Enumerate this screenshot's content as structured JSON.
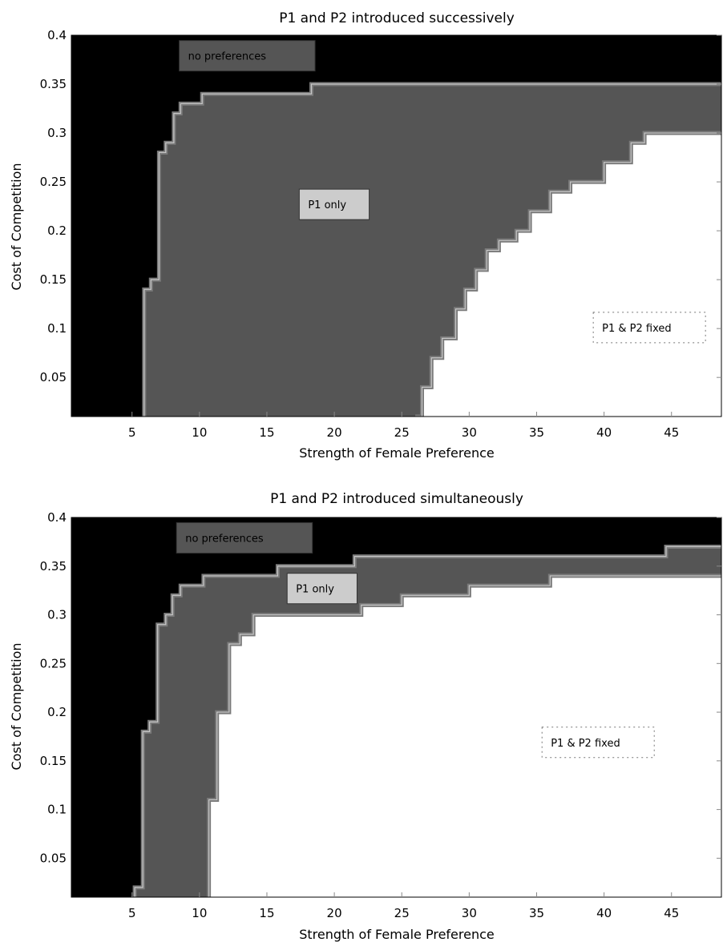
{
  "chart_data": [
    {
      "type": "contour",
      "title": "P1 and P2 introduced successively",
      "xlabel": "Strength of Female Preference",
      "ylabel": "Cost of Competition",
      "xlim": [
        0.5,
        48.7
      ],
      "ylim": [
        0.01,
        0.4
      ],
      "xticks": [
        5,
        10,
        15,
        20,
        25,
        30,
        35,
        40,
        45
      ],
      "yticks": [
        0.05,
        0.1,
        0.15,
        0.2,
        0.25,
        0.3,
        0.35,
        0.4
      ],
      "colors": {
        "no_preferences": "#000000",
        "p1_only": "#555555",
        "fixed": "#ffffff"
      },
      "regions": [
        {
          "name": "no preferences",
          "label": "no preferences",
          "label_fill": "#555555",
          "label_at": [
            8.5,
            0.379
          ],
          "boundary": [
            [
              5.9,
              0.01
            ],
            [
              5.9,
              0.14
            ],
            [
              6.4,
              0.14
            ],
            [
              6.4,
              0.15
            ],
            [
              7.0,
              0.15
            ],
            [
              7.0,
              0.28
            ],
            [
              7.5,
              0.28
            ],
            [
              7.5,
              0.29
            ],
            [
              8.1,
              0.29
            ],
            [
              8.1,
              0.32
            ],
            [
              8.6,
              0.32
            ],
            [
              8.6,
              0.33
            ],
            [
              10.2,
              0.33
            ],
            [
              10.2,
              0.34
            ],
            [
              18.3,
              0.34
            ],
            [
              18.3,
              0.35
            ],
            [
              48.7,
              0.35
            ]
          ]
        },
        {
          "name": "P1 only",
          "label": "P1 only",
          "label_fill": "#cccccc",
          "label_at": [
            17.4,
            0.227
          ],
          "boundary": [
            [
              26.0,
              0.01
            ],
            [
              26.5,
              0.01
            ],
            [
              26.5,
              0.04
            ],
            [
              27.2,
              0.04
            ],
            [
              27.2,
              0.07
            ],
            [
              28.0,
              0.07
            ],
            [
              28.0,
              0.09
            ],
            [
              29.0,
              0.09
            ],
            [
              29.0,
              0.12
            ],
            [
              29.7,
              0.12
            ],
            [
              29.7,
              0.14
            ],
            [
              30.5,
              0.14
            ],
            [
              30.5,
              0.16
            ],
            [
              31.3,
              0.16
            ],
            [
              31.3,
              0.18
            ],
            [
              32.2,
              0.18
            ],
            [
              32.2,
              0.19
            ],
            [
              33.5,
              0.19
            ],
            [
              33.5,
              0.2
            ],
            [
              34.5,
              0.2
            ],
            [
              34.5,
              0.22
            ],
            [
              36.0,
              0.22
            ],
            [
              36.0,
              0.24
            ],
            [
              37.5,
              0.24
            ],
            [
              37.5,
              0.25
            ],
            [
              40.0,
              0.25
            ],
            [
              40.0,
              0.27
            ],
            [
              42.0,
              0.27
            ],
            [
              42.0,
              0.29
            ],
            [
              43.0,
              0.29
            ],
            [
              43.0,
              0.3
            ],
            [
              48.7,
              0.3
            ]
          ]
        },
        {
          "name": "P1 & P2 fixed",
          "label": "P1 & P2 fixed",
          "label_fill": "#ffffff",
          "label_at": [
            39.2,
            0.101
          ]
        }
      ]
    },
    {
      "type": "contour",
      "title": "P1 and P2 introduced simultaneously",
      "xlabel": "Strength of Female Preference",
      "ylabel": "Cost of Competition",
      "xlim": [
        0.5,
        48.7
      ],
      "ylim": [
        0.01,
        0.4
      ],
      "xticks": [
        5,
        10,
        15,
        20,
        25,
        30,
        35,
        40,
        45
      ],
      "yticks": [
        0.05,
        0.1,
        0.15,
        0.2,
        0.25,
        0.3,
        0.35,
        0.4
      ],
      "colors": {
        "no_preferences": "#000000",
        "p1_only": "#555555",
        "fixed": "#ffffff"
      },
      "regions": [
        {
          "name": "no preferences",
          "label": "no preferences",
          "label_fill": "#555555",
          "label_at": [
            8.3,
            0.379
          ],
          "boundary": [
            [
              5.2,
              0.01
            ],
            [
              5.2,
              0.02
            ],
            [
              5.8,
              0.02
            ],
            [
              5.8,
              0.18
            ],
            [
              6.3,
              0.18
            ],
            [
              6.3,
              0.19
            ],
            [
              6.9,
              0.19
            ],
            [
              6.9,
              0.29
            ],
            [
              7.5,
              0.29
            ],
            [
              7.5,
              0.3
            ],
            [
              8.0,
              0.3
            ],
            [
              8.0,
              0.32
            ],
            [
              8.6,
              0.32
            ],
            [
              8.6,
              0.33
            ],
            [
              10.3,
              0.33
            ],
            [
              10.3,
              0.34
            ],
            [
              15.8,
              0.34
            ],
            [
              15.8,
              0.35
            ],
            [
              21.5,
              0.35
            ],
            [
              21.5,
              0.36
            ],
            [
              44.6,
              0.36
            ],
            [
              44.6,
              0.37
            ],
            [
              48.7,
              0.37
            ]
          ]
        },
        {
          "name": "P1 only",
          "label": "P1 only",
          "label_fill": "#cccccc",
          "label_at": [
            16.5,
            0.327
          ],
          "boundary": [
            [
              10.7,
              0.01
            ],
            [
              10.7,
              0.11
            ],
            [
              11.3,
              0.11
            ],
            [
              11.3,
              0.2
            ],
            [
              12.2,
              0.2
            ],
            [
              12.2,
              0.27
            ],
            [
              13.0,
              0.27
            ],
            [
              13.0,
              0.28
            ],
            [
              14.0,
              0.28
            ],
            [
              14.0,
              0.3
            ],
            [
              22.0,
              0.3
            ],
            [
              22.0,
              0.31
            ],
            [
              25.0,
              0.31
            ],
            [
              25.0,
              0.32
            ],
            [
              30.0,
              0.32
            ],
            [
              30.0,
              0.33
            ],
            [
              36.0,
              0.33
            ],
            [
              36.0,
              0.34
            ],
            [
              48.7,
              0.34
            ]
          ]
        },
        {
          "name": "P1 & P2 fixed",
          "label": "P1 & P2 fixed",
          "label_fill": "#ffffff",
          "label_at": [
            35.4,
            0.169
          ]
        }
      ]
    }
  ]
}
